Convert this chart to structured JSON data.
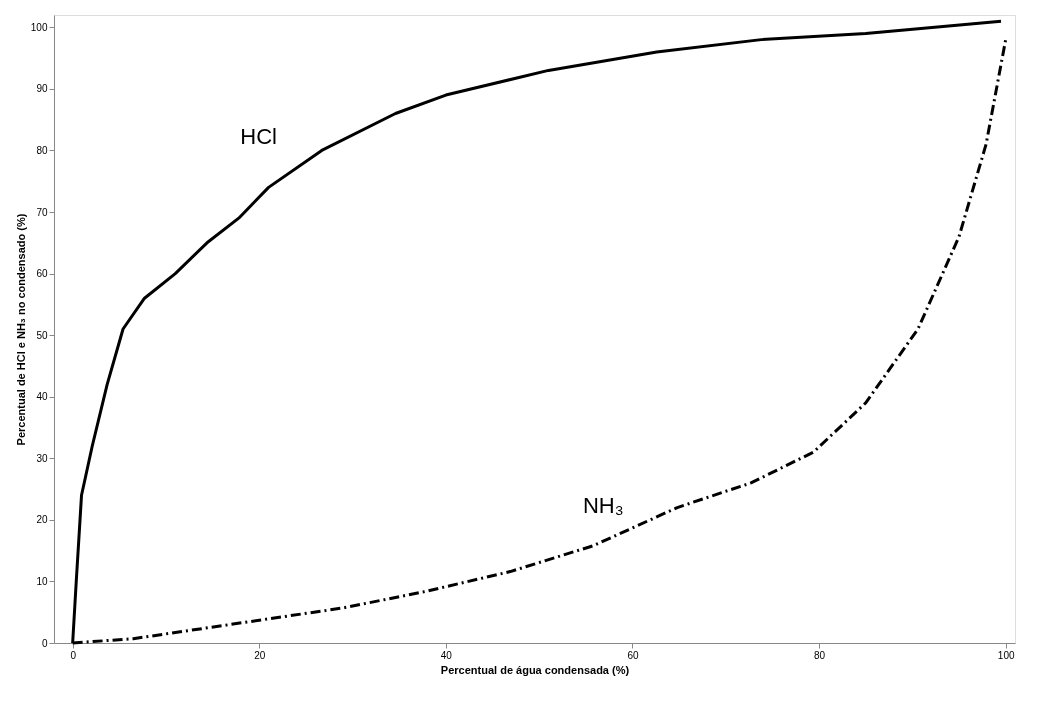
{
  "chart_data": {
    "type": "line",
    "xlabel": "Percentual de água condensada (%)",
    "ylabel": "Percentual de HCl e NH₃ no condensado (%)",
    "xlim": [
      -2,
      101
    ],
    "ylim": [
      0,
      102
    ],
    "xticks": [
      0,
      20,
      40,
      60,
      80,
      100
    ],
    "yticks": [
      0,
      10,
      20,
      30,
      40,
      50,
      60,
      70,
      80,
      90,
      100
    ],
    "grid": false,
    "marker": "none",
    "series": [
      {
        "name": "HCl",
        "color": "#000000",
        "line_style": "solid",
        "x": [
          0,
          0.4,
          0.95,
          2.1,
          3.7,
          5.4,
          7.7,
          11,
          14.4,
          17.8,
          21,
          26.7,
          34.6,
          40,
          51,
          62.6,
          73.8,
          85,
          99.5
        ],
        "values": [
          0,
          10.4,
          24,
          32,
          42,
          51,
          56,
          60,
          65,
          69,
          74,
          80,
          86,
          89,
          93,
          96,
          98,
          99,
          101
        ]
      },
      {
        "name": "NH₃",
        "color": "#000000",
        "line_style": "dashed",
        "x": [
          0,
          6.5,
          20,
          29,
          37.9,
          46.9,
          55.8,
          64.8,
          72.7,
          79.4,
          85,
          90.6,
          95,
          97.9,
          100
        ],
        "values": [
          0,
          0.7,
          3.7,
          5.7,
          8.4,
          11.6,
          15.8,
          22,
          26,
          31,
          39,
          51,
          66,
          81,
          98
        ]
      }
    ]
  }
}
